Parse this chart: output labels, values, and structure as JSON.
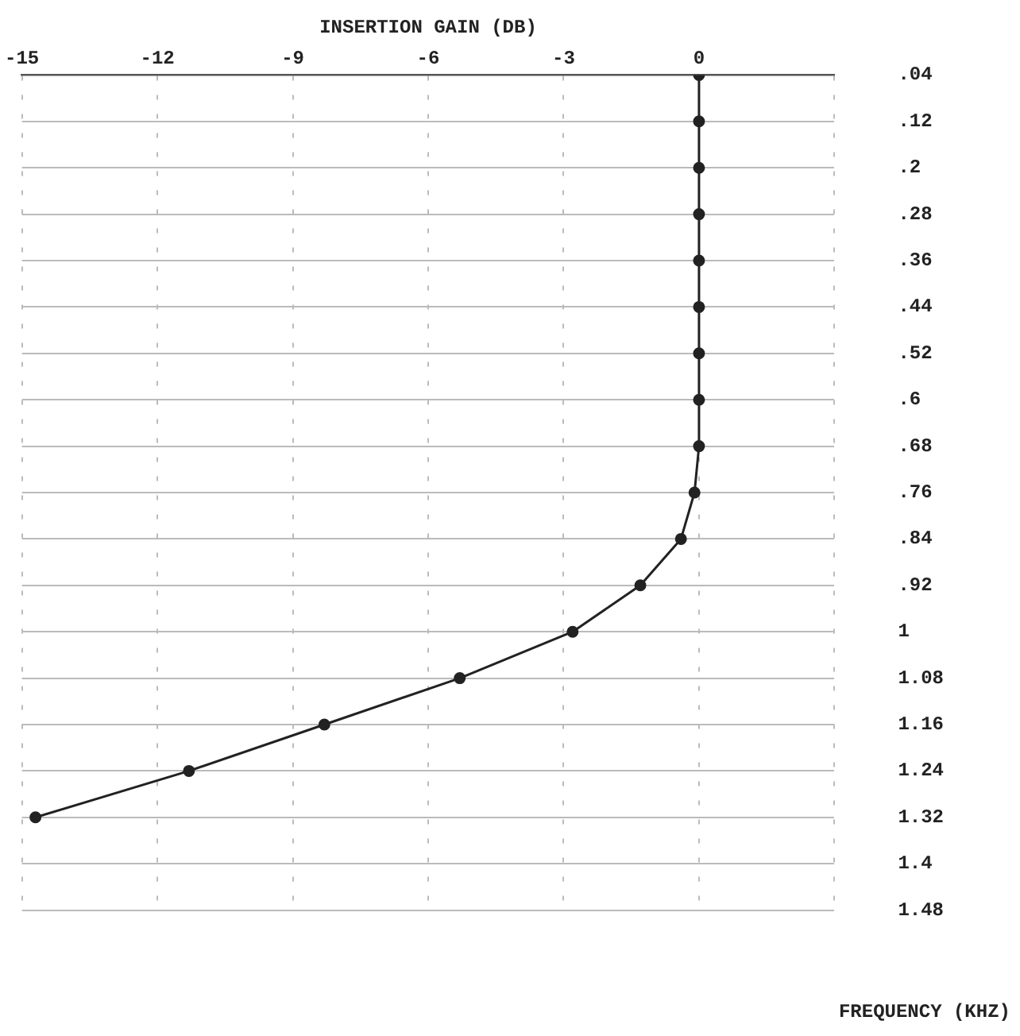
{
  "chart_data": {
    "type": "line",
    "xlabel": "INSERTION GAIN (DB)",
    "ylabel": "FREQUENCY (KHZ)",
    "series": [
      {
        "color": "#222222",
        "x": [
          0,
          0,
          0,
          0,
          0,
          0,
          0,
          0,
          0,
          -0.1,
          -0.4,
          -1.3,
          -2.8,
          -5.3,
          -8.3,
          -11.3,
          -14.7
        ],
        "values": [
          0.04,
          0.12,
          0.2,
          0.28,
          0.36,
          0.44,
          0.52,
          0.6,
          0.68,
          0.76,
          0.84,
          0.92,
          1.0,
          1.08,
          1.16,
          1.24,
          1.32
        ]
      }
    ],
    "xlim": [
      -15,
      3
    ],
    "xticks": [
      -15,
      -12,
      -9,
      -6,
      -3,
      0,
      {
        "value": 3,
        "label": null
      }
    ],
    "ylim": [
      1.48,
      0.04
    ],
    "yticks": [
      {
        "value": 0.04,
        "label": ".04"
      },
      {
        "value": 0.12,
        "label": ".12"
      },
      {
        "value": 0.2,
        "label": ".2"
      },
      {
        "value": 0.28,
        "label": ".28"
      },
      {
        "value": 0.36,
        "label": ".36"
      },
      {
        "value": 0.44,
        "label": ".44"
      },
      {
        "value": 0.52,
        "label": ".52"
      },
      {
        "value": 0.6,
        "label": ".6"
      },
      {
        "value": 0.68,
        "label": ".68"
      },
      {
        "value": 0.76,
        "label": ".76"
      },
      {
        "value": 0.84,
        "label": ".84"
      },
      {
        "value": 0.92,
        "label": ".92"
      },
      1,
      1.08,
      1.16,
      1.24,
      1.32,
      1.4,
      1.48
    ],
    "grid": true,
    "marker": "circle",
    "line_style": "solid"
  }
}
